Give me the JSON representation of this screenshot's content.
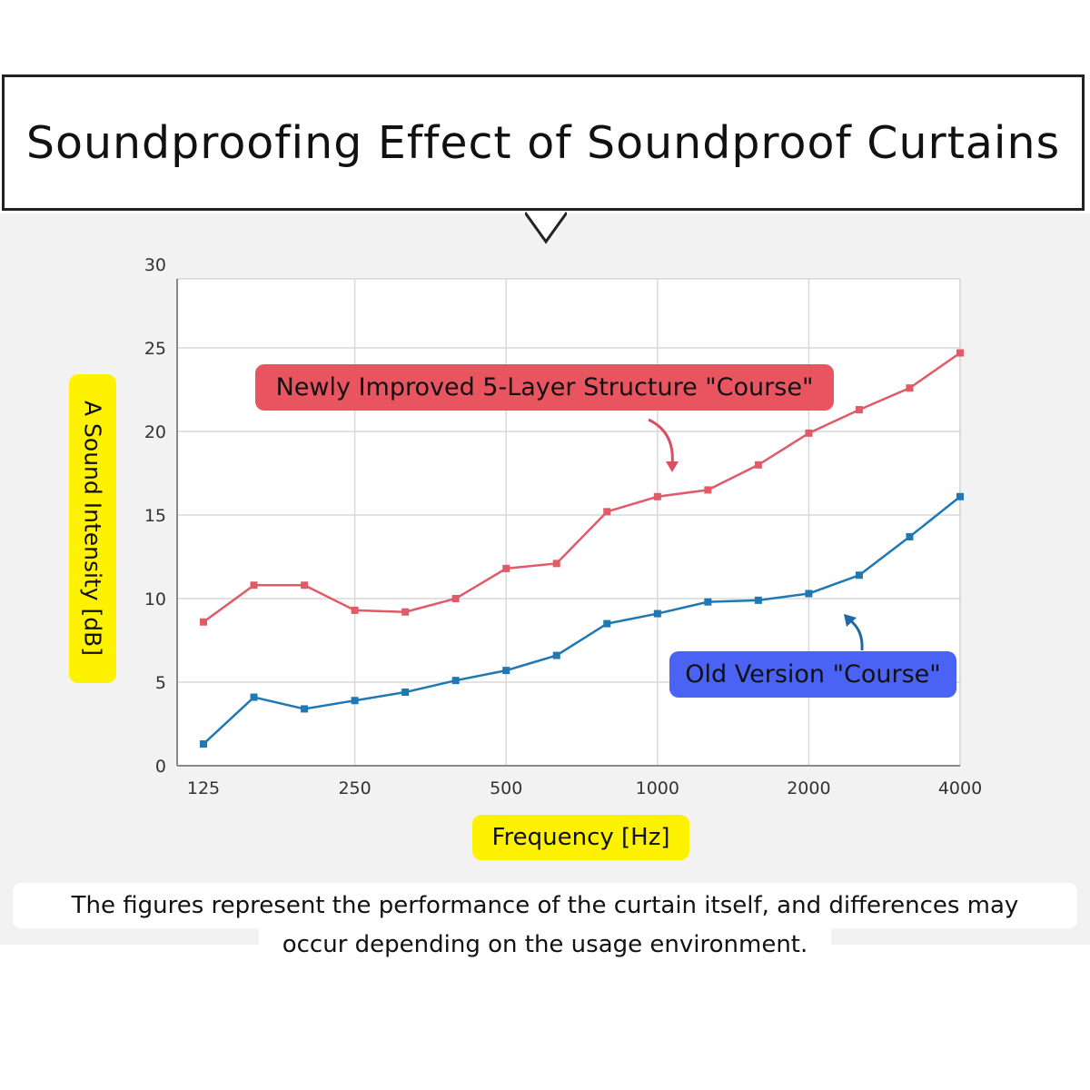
{
  "title": "Soundproofing Effect of Soundproof Curtains",
  "note_line1": "The figures represent the performance of the curtain itself, and differences may",
  "note_line2": "occur depending on the usage environment.",
  "chart_data": {
    "type": "line",
    "title": "Soundproofing Effect of Soundproof Curtains",
    "xlabel": "Frequency [Hz]",
    "ylabel": "A Sound Intensity [dB]",
    "x_scale": "log (1/3 octave bands)",
    "x_tick_labels": [
      "125",
      "250",
      "500",
      "1000",
      "2000",
      "4000"
    ],
    "y_ticks": [
      0,
      5,
      10,
      15,
      20,
      25,
      30
    ],
    "ylim": [
      0,
      30
    ],
    "grid": true,
    "categories": [
      125,
      160,
      200,
      250,
      315,
      400,
      500,
      630,
      800,
      1000,
      1250,
      1600,
      2000,
      2500,
      3150,
      4000
    ],
    "series": [
      {
        "name": "Newly Improved 5-Layer Structure \"Course\"",
        "color": "#e05a68",
        "values": [
          8.6,
          10.8,
          10.8,
          9.3,
          9.2,
          10.0,
          11.8,
          12.1,
          15.2,
          16.1,
          16.5,
          18.0,
          19.9,
          21.3,
          22.6,
          24.7
        ]
      },
      {
        "name": "Old Version \"Course\"",
        "color": "#1f78b4",
        "values": [
          1.3,
          4.1,
          3.4,
          3.9,
          4.4,
          5.1,
          5.7,
          6.6,
          8.5,
          9.1,
          9.8,
          9.9,
          10.3,
          11.4,
          13.7,
          16.1
        ]
      }
    ],
    "label_colors": {
      "new": "#e8545f",
      "old": "#4a63f5",
      "axis_label_bg": "#fff200"
    }
  }
}
